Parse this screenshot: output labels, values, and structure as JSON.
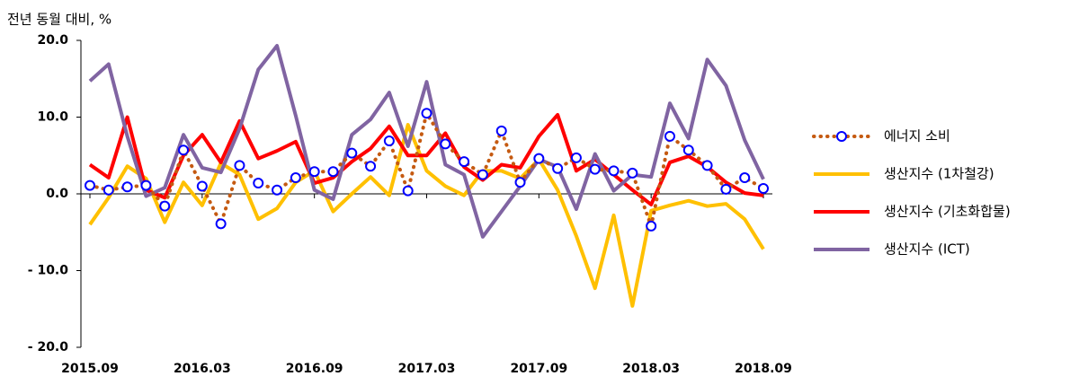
{
  "chart_data": {
    "type": "line",
    "y_label": "전년 동월 대비, %",
    "categories": [
      "2015.09",
      null,
      null,
      null,
      null,
      null,
      "2016.03",
      null,
      null,
      null,
      null,
      null,
      "2016.09",
      null,
      null,
      null,
      null,
      null,
      "2017.03",
      null,
      null,
      null,
      null,
      null,
      "2017.09",
      null,
      null,
      null,
      null,
      null,
      "2018.03",
      null,
      null,
      null,
      null,
      null,
      "2018.09"
    ],
    "ylim": [
      -20,
      20
    ],
    "yticks": [
      {
        "value": 20,
        "label": "20.0"
      },
      {
        "value": 10,
        "label": "10.0"
      },
      {
        "value": 0,
        "label": "0.0"
      },
      {
        "value": -10,
        "label": "- 10.0"
      },
      {
        "value": -20,
        "label": "- 20.0"
      }
    ],
    "legend": "right",
    "series": [
      {
        "name": "생산지수 (1차철강)",
        "color": "#ffc000",
        "values": [
          -4.0,
          -0.5,
          3.6,
          2.0,
          -3.7,
          1.5,
          -1.5,
          4.0,
          2.5,
          -3.3,
          -1.9,
          1.5,
          3.0,
          -2.3,
          0,
          2.2,
          -0.2,
          9.0,
          3.0,
          1.0,
          -0.2,
          3.0,
          3.0,
          2.0,
          4.5,
          0.5,
          -5.5,
          -12.3,
          -2.8,
          -14.6,
          -2.2,
          -1.5,
          -0.9,
          -1.6,
          -1.3,
          -3.3,
          -7.2
        ]
      },
      {
        "name": "생산지수 (기초화합물)",
        "color": "#ff0000",
        "values": [
          3.8,
          2.1,
          10.0,
          0.5,
          -0.5,
          5.0,
          7.7,
          4.1,
          9.5,
          4.6,
          5.6,
          6.8,
          1.4,
          2.1,
          4.2,
          5.9,
          8.8,
          5.0,
          5.0,
          7.9,
          3.5,
          1.8,
          3.8,
          3.4,
          7.5,
          10.3,
          3.0,
          4.5,
          2.5,
          0.5,
          -1.4,
          4.1,
          4.9,
          3.5,
          1.5,
          0.1,
          -0.2
        ]
      },
      {
        "name": "생산지수 (ICT)",
        "color": "#8064a2",
        "values": [
          14.7,
          16.9,
          7.5,
          -0.3,
          0.8,
          7.7,
          3.4,
          2.8,
          8.5,
          16.2,
          19.3,
          10.2,
          0.5,
          -0.7,
          7.7,
          9.7,
          13.2,
          6.2,
          14.6,
          3.8,
          2.5,
          -5.6,
          -2.3,
          1.0,
          4.5,
          3.5,
          -2.0,
          5.2,
          0.4,
          2.5,
          2.2,
          11.8,
          7.2,
          17.5,
          14.1,
          7.0,
          1.9
        ]
      },
      {
        "name": "에너지 소비",
        "color": "#c55a11",
        "dash": "dotted",
        "marker": "circle",
        "marker_color": "#0000ff",
        "values": [
          1.1,
          0.5,
          0.9,
          1.1,
          -1.6,
          5.7,
          1.0,
          -3.9,
          3.7,
          1.4,
          0.5,
          2.1,
          2.9,
          2.9,
          5.3,
          3.6,
          6.9,
          0.4,
          10.5,
          6.5,
          4.2,
          2.5,
          8.2,
          1.5,
          4.6,
          3.3,
          4.7,
          3.2,
          3.0,
          2.7,
          -4.2,
          7.5,
          5.7,
          3.7,
          0.6,
          2.1,
          0.7
        ]
      }
    ],
    "legend_order": [
      3,
      0,
      1,
      2
    ]
  }
}
